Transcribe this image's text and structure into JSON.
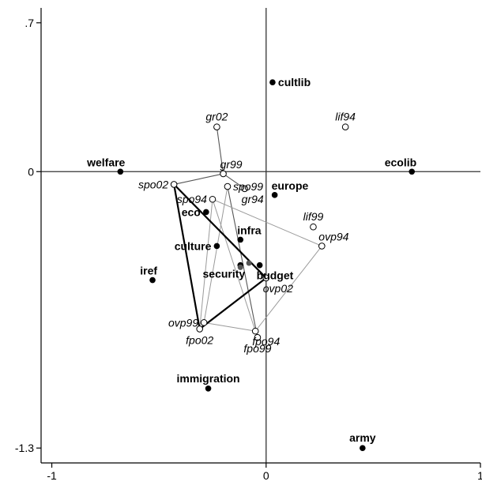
{
  "chart_data": {
    "type": "scatter",
    "title": "",
    "xlabel": "",
    "ylabel": "",
    "xlim": [
      -1.05,
      1.0
    ],
    "ylim": [
      -1.37,
      0.77
    ],
    "x_ticks": [
      {
        "value": -1,
        "label": "-1"
      },
      {
        "value": 0,
        "label": "0"
      },
      {
        "value": 1,
        "label": "1"
      }
    ],
    "y_ticks": [
      {
        "value": 0.7,
        "label": ".7"
      },
      {
        "value": 0,
        "label": "0"
      },
      {
        "value": -1.3,
        "label": "-1.3"
      }
    ],
    "reference_lines": {
      "x": 0,
      "y": 0
    },
    "issues": [
      {
        "name": "cultlib",
        "x": 0.03,
        "y": 0.42
      },
      {
        "name": "welfare",
        "x": -0.68,
        "y": 0.0
      },
      {
        "name": "ecolib",
        "x": 0.68,
        "y": 0.0
      },
      {
        "name": "europe",
        "x": 0.04,
        "y": -0.11
      },
      {
        "name": "eco",
        "x": -0.28,
        "y": -0.19
      },
      {
        "name": "culture",
        "x": -0.23,
        "y": -0.35
      },
      {
        "name": "infra",
        "x": -0.12,
        "y": -0.32
      },
      {
        "name": "budget",
        "x": -0.03,
        "y": -0.44
      },
      {
        "name": "security",
        "x": -0.12,
        "y": -0.44
      },
      {
        "name": "iref",
        "x": -0.53,
        "y": -0.51
      },
      {
        "name": "immigration",
        "x": -0.27,
        "y": -1.02
      },
      {
        "name": "army",
        "x": 0.45,
        "y": -1.3
      }
    ],
    "parties": [
      {
        "name": "gr02",
        "x": -0.23,
        "y": 0.21
      },
      {
        "name": "lif94",
        "x": 0.37,
        "y": 0.21
      },
      {
        "name": "gr99",
        "x": -0.2,
        "y": -0.01
      },
      {
        "name": "spo02",
        "x": -0.43,
        "y": -0.06
      },
      {
        "name": "spo99",
        "x": -0.18,
        "y": -0.07
      },
      {
        "name": "gr94",
        "x": -0.1,
        "y": -0.08
      },
      {
        "name": "spo94",
        "x": -0.25,
        "y": -0.13
      },
      {
        "name": "lif99",
        "x": 0.22,
        "y": -0.26
      },
      {
        "name": "ovp94",
        "x": 0.26,
        "y": -0.35
      },
      {
        "name": "ovp02",
        "x": 0.0,
        "y": -0.5
      },
      {
        "name": "ovp99",
        "x": -0.29,
        "y": -0.71
      },
      {
        "name": "fpo02",
        "x": -0.31,
        "y": -0.74
      },
      {
        "name": "fpo94",
        "x": -0.05,
        "y": -0.75
      },
      {
        "name": "fpo99",
        "x": -0.04,
        "y": -0.78
      }
    ],
    "unlabeled_points": [
      {
        "x": -0.12,
        "y": -0.45
      },
      {
        "x": -0.08,
        "y": -0.43
      }
    ],
    "connections": [
      {
        "style": "thin-dark",
        "points": [
          "gr02",
          "gr99",
          "gr94"
        ]
      },
      {
        "style": "thin-dark",
        "points": [
          "gr99",
          "spo02"
        ]
      },
      {
        "style": "thin-dark",
        "points": [
          "spo99",
          "fpo99"
        ]
      },
      {
        "style": "thin-light",
        "points": [
          "spo99",
          "ovp99"
        ]
      },
      {
        "style": "thin-light",
        "points": [
          "spo94",
          "ovp94",
          "fpo94",
          "ovp99"
        ]
      },
      {
        "style": "thin-light",
        "points": [
          "spo94",
          "fpo94"
        ]
      },
      {
        "style": "thin-light",
        "points": [
          "spo94",
          "fpo02"
        ]
      },
      {
        "style": "thick",
        "points": [
          "spo02",
          "ovp02",
          "fpo02",
          "spo02"
        ]
      }
    ],
    "label_placement": {
      "cultlib": "right",
      "welfare": "above-left",
      "ecolib": "above-left",
      "europe": "above-right",
      "eco": "left",
      "culture": "left",
      "infra": "above-right",
      "budget": "below-right",
      "security": "below-left",
      "iref": "above-left",
      "immigration": "above-middle",
      "army": "above-middle",
      "gr02": "above-middle",
      "lif94": "above-middle",
      "gr99": "above-right",
      "spo02": "left",
      "spo99": "right",
      "gr94": "below-right",
      "spo94": "left",
      "lif99": "above-middle",
      "ovp94": "above-right",
      "ovp02": "below-right",
      "ovp99": "left",
      "fpo02": "below-middle",
      "fpo94": "below-right",
      "fpo99": "below-middle"
    }
  }
}
